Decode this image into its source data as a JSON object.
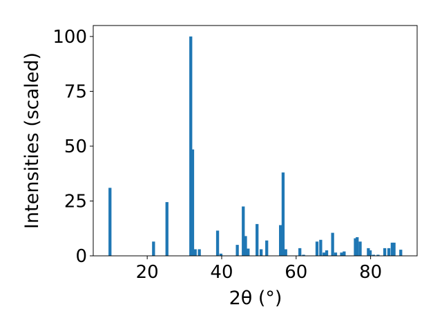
{
  "chart_data": {
    "type": "bar",
    "title": "",
    "xlabel": "2θ (°)",
    "ylabel": "Intensities (scaled)",
    "xlim": [
      5.5,
      92.5
    ],
    "ylim": [
      0,
      105
    ],
    "xticks": [
      20,
      40,
      60,
      80
    ],
    "yticks": [
      0,
      25,
      50,
      75,
      100
    ],
    "grid": false,
    "legend": "none",
    "bar_color": "#1f77b4",
    "bar_width": 0.8,
    "series": [
      {
        "x": [
          10.0,
          21.7,
          25.3,
          31.7,
          32.2,
          32.9,
          34.0,
          38.9,
          39.8,
          44.2,
          45.8,
          46.4,
          47.1,
          49.5,
          50.6,
          52.1,
          55.8,
          56.5,
          57.2,
          61.0,
          62.0,
          65.6,
          66.6,
          67.5,
          68.2,
          69.8,
          70.6,
          72.2,
          72.9,
          75.9,
          76.4,
          77.2,
          79.4,
          79.9,
          80.8,
          82.0,
          83.8,
          84.9,
          85.8,
          86.3,
          88.1
        ],
        "y": [
          31,
          6.5,
          24.5,
          100,
          48.5,
          3,
          3,
          11.5,
          1,
          5,
          22.5,
          9,
          3.3,
          14.5,
          3,
          7,
          14,
          38,
          3,
          3.5,
          0.5,
          6.5,
          7.3,
          1.5,
          2.5,
          10.5,
          1.5,
          1.5,
          2,
          8,
          8.5,
          6.5,
          3.5,
          2.5,
          0.5,
          0.5,
          3.5,
          3.5,
          6,
          6,
          2.8
        ]
      }
    ]
  }
}
